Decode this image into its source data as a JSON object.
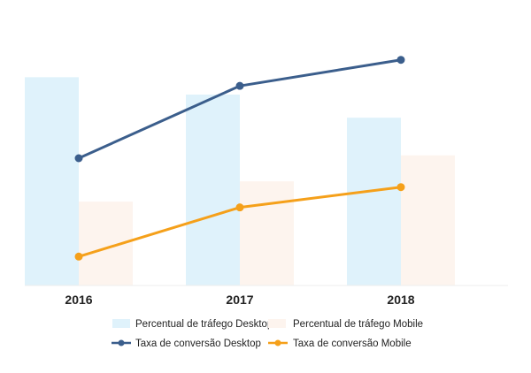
{
  "chart_data": {
    "type": "bar+line",
    "title": "",
    "xlabel": "",
    "ylabel": "",
    "categories": [
      "2016",
      "2017",
      "2018"
    ],
    "bar_series": [
      {
        "name": "Percentual de tráfego Desktop",
        "values": [
          72,
          66,
          58
        ],
        "color": "#dff2fb"
      },
      {
        "name": "Percentual de tráfego Mobile",
        "values": [
          29,
          36,
          45
        ],
        "color": "#fdf4ee"
      }
    ],
    "line_series": [
      {
        "name": "Taxa de conversão Desktop",
        "values": [
          44,
          69,
          78
        ],
        "color": "#3b5e8c"
      },
      {
        "name": "Taxa de conversão Mobile",
        "values": [
          10,
          27,
          34
        ],
        "color": "#f5a01a"
      }
    ],
    "ylim": [
      0,
      88
    ],
    "grid": false,
    "y_axis_visible": false,
    "legend_position": "bottom"
  }
}
